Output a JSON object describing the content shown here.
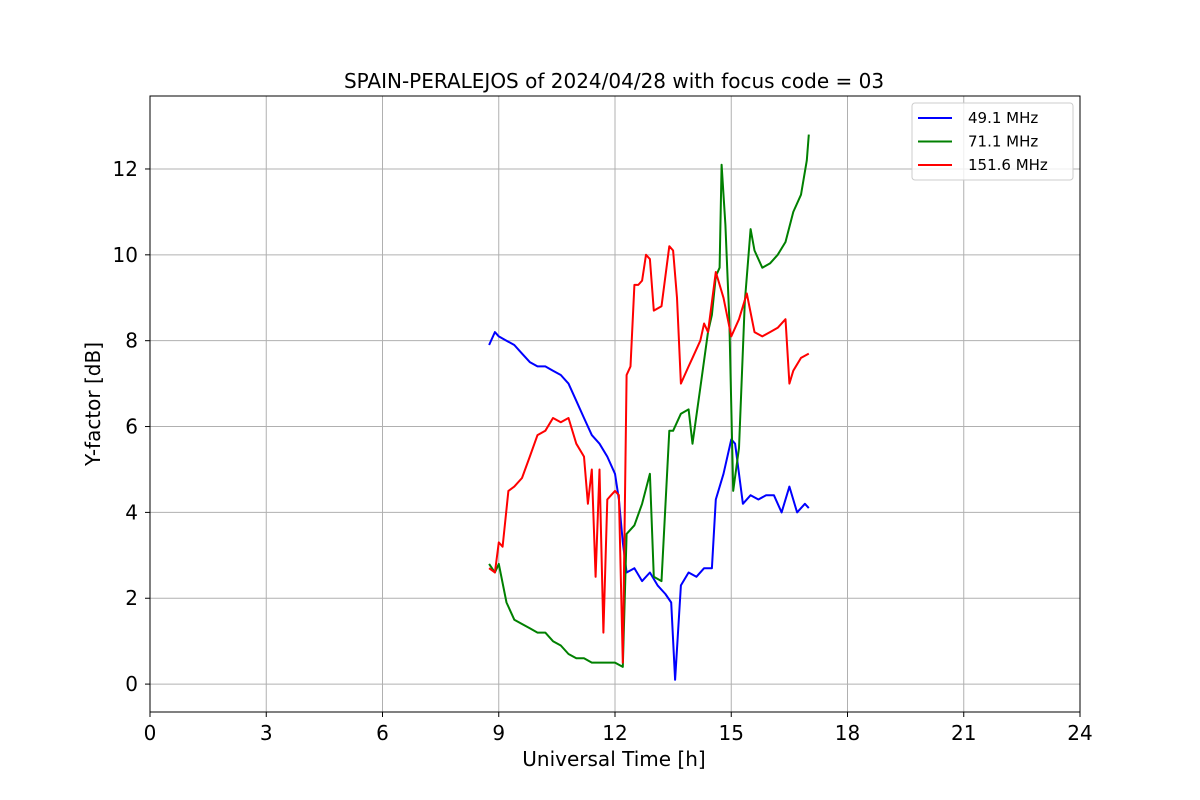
{
  "chart_data": {
    "type": "line",
    "title": "SPAIN-PERALEJOS of 2024/04/28 with focus code = 03",
    "xlabel": "Universal Time [h]",
    "ylabel": "Y-factor [dB]",
    "xlim": [
      0,
      24
    ],
    "ylim": [
      -0.65,
      13.7
    ],
    "x_ticks": [
      0,
      3,
      6,
      9,
      12,
      15,
      18,
      21,
      24
    ],
    "y_ticks": [
      0,
      2,
      4,
      6,
      8,
      10,
      12
    ],
    "grid": true,
    "legend_position": "top-right",
    "series": [
      {
        "name": "49.1 MHz",
        "color": "#0000ff",
        "x": [
          8.75,
          8.9,
          9.0,
          9.2,
          9.4,
          9.6,
          9.8,
          10.0,
          10.2,
          10.4,
          10.6,
          10.8,
          11.0,
          11.2,
          11.4,
          11.6,
          11.8,
          12.0,
          12.1,
          12.2,
          12.3,
          12.5,
          12.7,
          12.9,
          13.1,
          13.3,
          13.45,
          13.55,
          13.7,
          13.9,
          14.1,
          14.3,
          14.5,
          14.6,
          14.8,
          15.0,
          15.1,
          15.3,
          15.5,
          15.7,
          15.9,
          16.1,
          16.3,
          16.5,
          16.7,
          16.9,
          17.0
        ],
        "values": [
          7.9,
          8.2,
          8.1,
          8.0,
          7.9,
          7.7,
          7.5,
          7.4,
          7.4,
          7.3,
          7.2,
          7.0,
          6.6,
          6.2,
          5.8,
          5.6,
          5.3,
          4.9,
          4.3,
          3.3,
          2.6,
          2.7,
          2.4,
          2.6,
          2.3,
          2.1,
          1.9,
          0.1,
          2.3,
          2.6,
          2.5,
          2.7,
          2.7,
          4.3,
          4.9,
          5.7,
          5.6,
          4.2,
          4.4,
          4.3,
          4.4,
          4.4,
          4.0,
          4.6,
          4.0,
          4.2,
          4.1
        ]
      },
      {
        "name": "71.1 MHz",
        "color": "#008000",
        "x": [
          8.75,
          8.9,
          9.0,
          9.2,
          9.4,
          9.6,
          9.8,
          10.0,
          10.2,
          10.4,
          10.6,
          10.8,
          11.0,
          11.2,
          11.4,
          11.6,
          11.8,
          12.0,
          12.2,
          12.3,
          12.5,
          12.7,
          12.9,
          13.0,
          13.2,
          13.4,
          13.5,
          13.7,
          13.9,
          14.0,
          14.2,
          14.4,
          14.5,
          14.6,
          14.7,
          14.75,
          14.85,
          14.95,
          15.05,
          15.2,
          15.35,
          15.5,
          15.6,
          15.8,
          16.0,
          16.2,
          16.4,
          16.6,
          16.8,
          16.95,
          17.0
        ],
        "values": [
          2.8,
          2.6,
          2.8,
          1.9,
          1.5,
          1.4,
          1.3,
          1.2,
          1.2,
          1.0,
          0.9,
          0.7,
          0.6,
          0.6,
          0.5,
          0.5,
          0.5,
          0.5,
          0.4,
          3.5,
          3.7,
          4.2,
          4.9,
          2.5,
          2.4,
          5.9,
          5.9,
          6.3,
          6.4,
          5.6,
          6.9,
          8.2,
          8.6,
          9.5,
          9.7,
          12.1,
          10.7,
          8.5,
          4.5,
          5.5,
          8.9,
          10.6,
          10.1,
          9.7,
          9.8,
          10.0,
          10.3,
          11.0,
          11.4,
          12.2,
          12.8
        ]
      },
      {
        "name": "151.6 MHz",
        "color": "#ff0000",
        "x": [
          8.75,
          8.9,
          9.0,
          9.1,
          9.25,
          9.4,
          9.6,
          9.8,
          10.0,
          10.2,
          10.4,
          10.6,
          10.8,
          11.0,
          11.2,
          11.3,
          11.4,
          11.5,
          11.6,
          11.7,
          11.8,
          11.9,
          12.0,
          12.1,
          12.2,
          12.3,
          12.4,
          12.5,
          12.6,
          12.7,
          12.8,
          12.9,
          13.0,
          13.2,
          13.4,
          13.5,
          13.6,
          13.7,
          13.9,
          14.0,
          14.2,
          14.3,
          14.4,
          14.6,
          14.8,
          15.0,
          15.2,
          15.4,
          15.6,
          15.8,
          16.0,
          16.2,
          16.4,
          16.5,
          16.6,
          16.8,
          17.0
        ],
        "values": [
          2.7,
          2.6,
          3.3,
          3.2,
          4.5,
          4.6,
          4.8,
          5.3,
          5.8,
          5.9,
          6.2,
          6.1,
          6.2,
          5.6,
          5.3,
          4.2,
          5.0,
          2.5,
          5.0,
          1.2,
          4.3,
          4.4,
          4.5,
          4.4,
          0.5,
          7.2,
          7.4,
          9.3,
          9.3,
          9.4,
          10.0,
          9.9,
          8.7,
          8.8,
          10.2,
          10.1,
          9.0,
          7.0,
          7.4,
          7.6,
          8.0,
          8.4,
          8.2,
          9.6,
          9.0,
          8.1,
          8.5,
          9.1,
          8.2,
          8.1,
          8.2,
          8.3,
          8.5,
          7.0,
          7.3,
          7.6,
          7.7
        ]
      }
    ]
  }
}
